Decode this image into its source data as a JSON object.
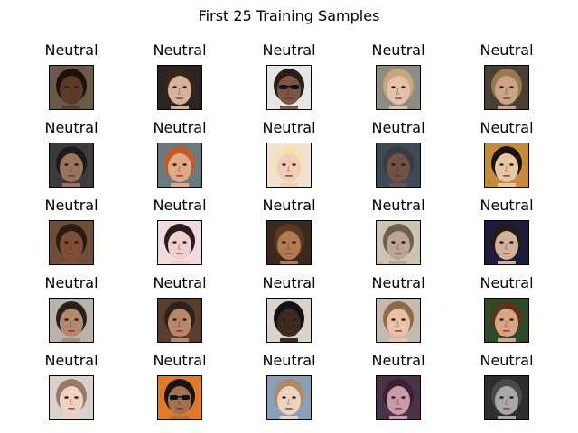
{
  "figure": {
    "title": "First 25 Training Samples"
  },
  "samples": [
    {
      "label": "Neutral",
      "bg": "#6b5a4a",
      "skin": "#5a3b2a",
      "hair": "#1c120c",
      "glasses": false
    },
    {
      "label": "Neutral",
      "bg": "#2a2522",
      "skin": "#d6b29a",
      "hair": "#3a2618",
      "glasses": false
    },
    {
      "label": "Neutral",
      "bg": "#e8e6e4",
      "skin": "#7a5643",
      "hair": "#2a1d17",
      "glasses": true
    },
    {
      "label": "Neutral",
      "bg": "#8e8b84",
      "skin": "#e5c0aa",
      "hair": "#c8a675",
      "glasses": false
    },
    {
      "label": "Neutral",
      "bg": "#4a4034",
      "skin": "#c9a485",
      "hair": "#9a7a4c",
      "glasses": false
    },
    {
      "label": "Neutral",
      "bg": "#3c3a3e",
      "skin": "#9b7460",
      "hair": "#1d1a1a",
      "glasses": false
    },
    {
      "label": "Neutral",
      "bg": "#6b7a7e",
      "skin": "#e1a987",
      "hair": "#c25a2a",
      "glasses": false
    },
    {
      "label": "Neutral",
      "bg": "#efe3cf",
      "skin": "#f1cdb8",
      "hair": "#f4e3b1",
      "glasses": false
    },
    {
      "label": "Neutral",
      "bg": "#3e4a54",
      "skin": "#6e5248",
      "hair": "#3a3a40",
      "glasses": false
    },
    {
      "label": "Neutral",
      "bg": "#c58a3c",
      "skin": "#e6c6a4",
      "hair": "#1a1410",
      "glasses": false
    },
    {
      "label": "Neutral",
      "bg": "#6d4d36",
      "skin": "#7e4f36",
      "hair": "#2b1a12",
      "glasses": false
    },
    {
      "label": "Neutral",
      "bg": "#f0dce0",
      "skin": "#f0cfcf",
      "hair": "#2a1c1c",
      "glasses": false
    },
    {
      "label": "Neutral",
      "bg": "#3b2a1c",
      "skin": "#b07a52",
      "hair": "#5a3a22",
      "glasses": false
    },
    {
      "label": "Neutral",
      "bg": "#cdc3b3",
      "skin": "#b8a692",
      "hair": "#6e5e4e",
      "glasses": false
    },
    {
      "label": "Neutral",
      "bg": "#1d1c3c",
      "skin": "#d2b09a",
      "hair": "#241a16",
      "glasses": false
    },
    {
      "label": "Neutral",
      "bg": "#b8b4ac",
      "skin": "#b48a6e",
      "hair": "#2a1f1a",
      "glasses": false
    },
    {
      "label": "Neutral",
      "bg": "#5c3e30",
      "skin": "#b8876a",
      "hair": "#2c2220",
      "glasses": false
    },
    {
      "label": "Neutral",
      "bg": "#d8d4cc",
      "skin": "#3a2a22",
      "hair": "#121010",
      "glasses": false
    },
    {
      "label": "Neutral",
      "bg": "#c6b9ae",
      "skin": "#e9c2a8",
      "hair": "#8a6a4a",
      "glasses": false
    },
    {
      "label": "Neutral",
      "bg": "#2e4a2a",
      "skin": "#d9a486",
      "hair": "#5a3418",
      "glasses": false
    },
    {
      "label": "Neutral",
      "bg": "#d9d2cc",
      "skin": "#f0d2c4",
      "hair": "#9a7a66",
      "glasses": false
    },
    {
      "label": "Neutral",
      "bg": "#e07a2a",
      "skin": "#a4704e",
      "hair": "#1a1410",
      "glasses": true
    },
    {
      "label": "Neutral",
      "bg": "#8aa0b8",
      "skin": "#ecd2c0",
      "hair": "#b08a66",
      "glasses": false
    },
    {
      "label": "Neutral",
      "bg": "#4a3248",
      "skin": "#c99aa8",
      "hair": "#3a2030",
      "glasses": false
    },
    {
      "label": "Neutral",
      "bg": "#2e2e2e",
      "skin": "#a8a8a8",
      "hair": "#4a4a4a",
      "glasses": false
    }
  ]
}
